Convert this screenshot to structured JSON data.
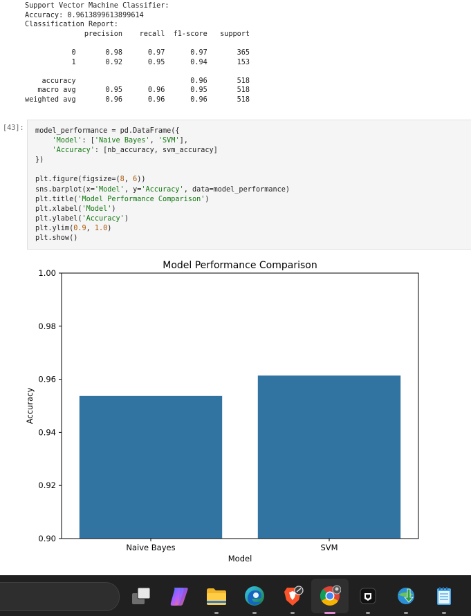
{
  "output_text": "Support Vector Machine Classifier:\nAccuracy: 0.9613899613899614\nClassification Report:\n              precision    recall  f1-score   support\n\n           0       0.98      0.97      0.97       365\n           1       0.92      0.95      0.94       153\n\n    accuracy                           0.96       518\n   macro avg       0.95      0.96      0.95       518\nweighted avg       0.96      0.96      0.96       518",
  "cell": {
    "prompt": "[43]:"
  },
  "code_lines": [
    [
      {
        "t": "model_performance = pd.DataFrame({"
      }
    ],
    [
      {
        "t": "    "
      },
      {
        "t": "'Model'",
        "c": "s"
      },
      {
        "t": ": ["
      },
      {
        "t": "'Naive Bayes'",
        "c": "s"
      },
      {
        "t": ", "
      },
      {
        "t": "'SVM'",
        "c": "s"
      },
      {
        "t": "],"
      }
    ],
    [
      {
        "t": "    "
      },
      {
        "t": "'Accuracy'",
        "c": "s"
      },
      {
        "t": ": [nb_accuracy, svm_accuracy]"
      }
    ],
    [
      {
        "t": "})"
      }
    ],
    [
      {
        "t": ""
      }
    ],
    [
      {
        "t": "plt.figure(figsize=("
      },
      {
        "t": "8",
        "c": "n"
      },
      {
        "t": ", "
      },
      {
        "t": "6",
        "c": "n"
      },
      {
        "t": "))"
      }
    ],
    [
      {
        "t": "sns.barplot(x="
      },
      {
        "t": "'Model'",
        "c": "s"
      },
      {
        "t": ", y="
      },
      {
        "t": "'Accuracy'",
        "c": "s"
      },
      {
        "t": ", data=model_performance)"
      }
    ],
    [
      {
        "t": "plt.title("
      },
      {
        "t": "'Model Performance Comparison'",
        "c": "s"
      },
      {
        "t": ")"
      }
    ],
    [
      {
        "t": "plt.xlabel("
      },
      {
        "t": "'Model'",
        "c": "s"
      },
      {
        "t": ")"
      }
    ],
    [
      {
        "t": "plt.ylabel("
      },
      {
        "t": "'Accuracy'",
        "c": "s"
      },
      {
        "t": ")"
      }
    ],
    [
      {
        "t": "plt.ylim("
      },
      {
        "t": "0.9",
        "c": "n"
      },
      {
        "t": ", "
      },
      {
        "t": "1.0",
        "c": "n"
      },
      {
        "t": ")"
      }
    ],
    [
      {
        "t": "plt.show()"
      }
    ]
  ],
  "chart_data": {
    "type": "bar",
    "title": "Model Performance Comparison",
    "xlabel": "Model",
    "ylabel": "Accuracy",
    "categories": [
      "Naive Bayes",
      "SVM"
    ],
    "values": [
      0.9537,
      0.9614
    ],
    "ylim": [
      0.9,
      1.0
    ],
    "yticks": [
      "0.90",
      "0.92",
      "0.94",
      "0.96",
      "0.98",
      "1.00"
    ],
    "bar_color": "#3274a1",
    "grid": false
  },
  "taskbar": {
    "apps": [
      "task-view",
      "copilot",
      "file-explorer",
      "edge",
      "brave",
      "chrome",
      "app-dark",
      "download-manager",
      "notepad"
    ]
  }
}
